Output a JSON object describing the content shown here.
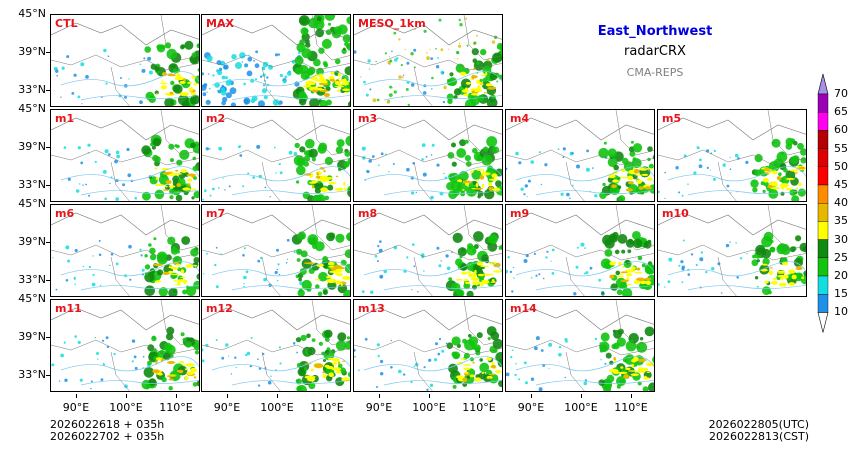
{
  "region": "East_Northwest",
  "variable": "radarCRX",
  "system": "CMA-REPS",
  "colors": {
    "region_title": "#0000dd",
    "system": "#808080",
    "panel_label": "#e8141b"
  },
  "panels": [
    {
      "label": "CTL"
    },
    {
      "label": "MAX"
    },
    {
      "label": "MESO_1km"
    },
    {
      "label": "m1"
    },
    {
      "label": "m2"
    },
    {
      "label": "m3"
    },
    {
      "label": "m4"
    },
    {
      "label": "m5"
    },
    {
      "label": "m6"
    },
    {
      "label": "m7"
    },
    {
      "label": "m8"
    },
    {
      "label": "m9"
    },
    {
      "label": "m10"
    },
    {
      "label": "m11"
    },
    {
      "label": "m12"
    },
    {
      "label": "m13"
    },
    {
      "label": "m14"
    }
  ],
  "y_axis": {
    "top_label": "45°N",
    "ticks": [
      "39°N",
      "33°N"
    ]
  },
  "x_axis": {
    "ticks": [
      "90°E",
      "100°E",
      "110°E"
    ]
  },
  "colorbar": {
    "levels": [
      "10",
      "15",
      "20",
      "25",
      "30",
      "35",
      "40",
      "45",
      "50",
      "55",
      "60",
      "65",
      "70"
    ],
    "colors": [
      "#1e90e8",
      "#14dde0",
      "#10c410",
      "#108a10",
      "#ffff00",
      "#e8b800",
      "#ff8c00",
      "#ff0000",
      "#dc0000",
      "#b40000",
      "#ff00f0",
      "#9a00b4",
      "#a890e8"
    ]
  },
  "footer": {
    "init_line1": "2026022618  +  035h",
    "init_line2": "2026022702  +  035h",
    "valid_utc": "2026022805(UTC)",
    "valid_cst": "2026022813(CST)"
  }
}
